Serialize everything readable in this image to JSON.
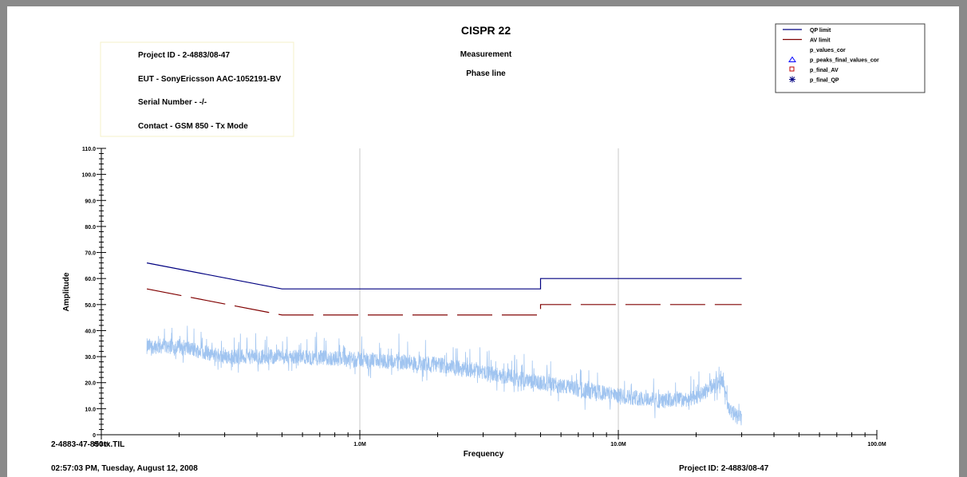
{
  "chart_data": {
    "type": "line",
    "title": "CISPR 22",
    "subtitles": [
      "Measurement",
      "Phase line"
    ],
    "info_box": [
      "Project ID - 2-4883/08-47",
      "EUT - SonyEricsson AAC-1052191-BV",
      "Serial Number - -/-",
      "Contact - GSM 850 - Tx Mode"
    ],
    "xlabel": "Frequency",
    "ylabel": "Amplitude",
    "x_scale": "log",
    "x_range_hz": [
      100000,
      100000000
    ],
    "x_ticks": [
      {
        "value": 100000,
        "label": "100.0k"
      },
      {
        "value": 1000000,
        "label": "1.0M"
      },
      {
        "value": 10000000,
        "label": "10.0M"
      },
      {
        "value": 100000000,
        "label": "100.0M"
      }
    ],
    "ylim": [
      0,
      110
    ],
    "y_ticks": [
      "0",
      "10.0",
      "20.0",
      "30.0",
      "40.0",
      "50.0",
      "60.0",
      "70.0",
      "80.0",
      "90.0",
      "100.0",
      "110.0"
    ],
    "grid": "vertical at decades",
    "legend_position": "top-right",
    "legend": [
      {
        "name": "QP limit",
        "symbol": "line",
        "color": "#000080"
      },
      {
        "name": "AV limit",
        "symbol": "line",
        "color": "#800000"
      },
      {
        "name": "p_values_cor",
        "symbol": "none",
        "color": "#a0c4f0"
      },
      {
        "name": "p_peaks_final_values_cor",
        "symbol": "triangle",
        "color": "#0000ff"
      },
      {
        "name": "p_final_AV",
        "symbol": "square",
        "color": "#c00000"
      },
      {
        "name": "p_final_QP",
        "symbol": "asterisk",
        "color": "#000080"
      }
    ],
    "series": [
      {
        "name": "QP limit",
        "color": "#000080",
        "style": "solid",
        "points": [
          [
            150000,
            66
          ],
          [
            500000,
            56
          ],
          [
            5000000,
            56
          ],
          [
            5000000,
            60
          ],
          [
            30000000,
            60
          ]
        ]
      },
      {
        "name": "AV limit",
        "color": "#800000",
        "style": "long-dash",
        "points": [
          [
            150000,
            56
          ],
          [
            500000,
            46
          ],
          [
            5000000,
            46
          ],
          [
            5000000,
            50
          ],
          [
            30000000,
            50
          ]
        ]
      },
      {
        "name": "p_values_cor",
        "color": "#a0c4f0",
        "style": "noisy",
        "envelope": [
          [
            150000,
            34
          ],
          [
            200000,
            34
          ],
          [
            300000,
            30
          ],
          [
            500000,
            30
          ],
          [
            1000000,
            29
          ],
          [
            2000000,
            27
          ],
          [
            3000000,
            24
          ],
          [
            5000000,
            20
          ],
          [
            10000000,
            15
          ],
          [
            15000000,
            13
          ],
          [
            20000000,
            14
          ],
          [
            24000000,
            20
          ],
          [
            25000000,
            22
          ],
          [
            27000000,
            9
          ],
          [
            30000000,
            6
          ]
        ]
      }
    ]
  },
  "footer": {
    "filename": "2-4883-47-850tx.TIL",
    "timestamp": "02:57:03 PM, Tuesday, August 12, 2008",
    "project": "Project ID: 2-4883/08-47"
  }
}
